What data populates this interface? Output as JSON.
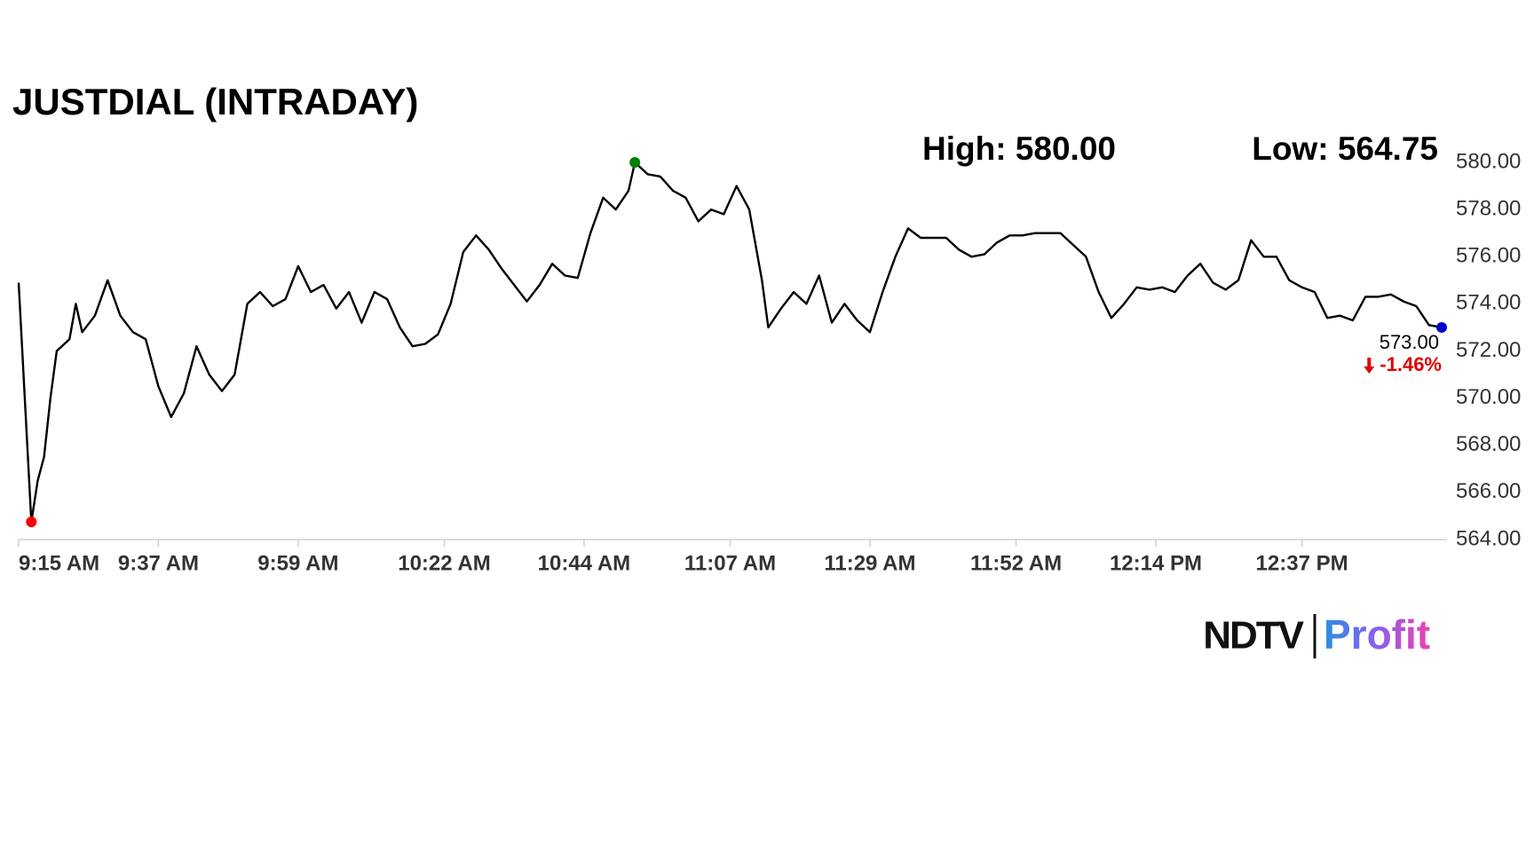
{
  "chart_data": {
    "type": "line",
    "title": "JUSTDIAL (INTRADAY)",
    "x": [
      "9:15 AM",
      "9:16 AM",
      "9:17 AM",
      "9:18 AM",
      "9:19 AM",
      "9:20 AM",
      "9:21 AM",
      "9:23 AM",
      "9:24 AM",
      "9:25 AM",
      "9:27 AM",
      "9:29 AM",
      "9:31 AM",
      "9:33 AM",
      "9:35 AM",
      "9:37 AM",
      "9:39 AM",
      "9:41 AM",
      "9:43 AM",
      "9:45 AM",
      "9:47 AM",
      "9:49 AM",
      "9:51 AM",
      "9:53 AM",
      "9:55 AM",
      "9:57 AM",
      "9:59 AM",
      "10:01 AM",
      "10:03 AM",
      "10:05 AM",
      "10:07 AM",
      "10:09 AM",
      "10:11 AM",
      "10:13 AM",
      "10:15 AM",
      "10:17 AM",
      "10:19 AM",
      "10:21 AM",
      "10:23 AM",
      "10:25 AM",
      "10:27 AM",
      "10:29 AM",
      "10:31 AM",
      "10:33 AM",
      "10:35 AM",
      "10:37 AM",
      "10:39 AM",
      "10:41 AM",
      "10:43 AM",
      "10:45 AM",
      "10:47 AM",
      "10:49 AM",
      "10:51 AM",
      "10:52 AM",
      "10:54 AM",
      "10:56 AM",
      "10:58 AM",
      "11:00 AM",
      "11:02 AM",
      "11:04 AM",
      "11:06 AM",
      "11:08 AM",
      "11:10 AM",
      "11:12 AM",
      "11:13 AM",
      "11:15 AM",
      "11:17 AM",
      "11:19 AM",
      "11:21 AM",
      "11:23 AM",
      "11:25 AM",
      "11:27 AM",
      "11:29 AM",
      "11:31 AM",
      "11:33 AM",
      "11:35 AM",
      "11:37 AM",
      "11:39 AM",
      "11:41 AM",
      "11:43 AM",
      "11:45 AM",
      "11:47 AM",
      "11:49 AM",
      "11:51 AM",
      "11:53 AM",
      "11:55 AM",
      "11:57 AM",
      "11:59 AM",
      "12:01 PM",
      "12:03 PM",
      "12:05 PM",
      "12:07 PM",
      "12:09 PM",
      "12:11 PM",
      "12:13 PM",
      "12:15 PM",
      "12:17 PM",
      "12:19 PM",
      "12:21 PM",
      "12:23 PM",
      "12:25 PM",
      "12:27 PM",
      "12:29 PM",
      "12:31 PM",
      "12:33 PM",
      "12:35 PM",
      "12:37 PM",
      "12:39 PM",
      "12:41 PM",
      "12:43 PM",
      "12:45 PM",
      "12:47 PM",
      "12:49 PM",
      "12:51 PM",
      "12:53 PM",
      "12:55 PM",
      "12:57 PM",
      "12:59 PM"
    ],
    "series": [
      {
        "color": "#000000",
        "values": [
          574.9,
          569.8,
          564.75,
          566.5,
          567.5,
          570,
          572,
          572.5,
          574,
          572.8,
          573.5,
          575,
          573.5,
          572.8,
          572.5,
          570.5,
          569.2,
          570.2,
          572.2,
          571,
          570.3,
          571,
          574,
          574.5,
          573.9,
          574.2,
          575.6,
          574.5,
          574.8,
          573.8,
          574.5,
          573.2,
          574.5,
          574.2,
          573,
          572.2,
          572.3,
          572.7,
          574,
          576.2,
          576.9,
          576.3,
          575.5,
          574.8,
          574.1,
          574.8,
          575.7,
          575.2,
          575.1,
          577,
          578.5,
          578,
          578.8,
          580,
          579.5,
          579.4,
          578.8,
          578.5,
          577.5,
          578,
          577.8,
          579,
          578,
          575,
          573,
          573.8,
          574.5,
          574,
          575.2,
          573.2,
          574,
          573.3,
          572.8,
          574.5,
          576,
          577.2,
          576.8,
          576.8,
          576.8,
          576.3,
          576,
          576.1,
          576.6,
          576.9,
          576.9,
          577,
          577,
          577,
          576.5,
          576,
          574.5,
          573.4,
          574,
          574.7,
          574.6,
          574.7,
          574.5,
          575.2,
          575.7,
          574.9,
          574.6,
          575,
          576.7,
          576,
          576,
          575,
          574.7,
          574.5,
          573.4,
          573.5,
          573.3,
          574.3,
          574.3,
          574.4,
          574.1,
          573.9,
          573.1,
          573
        ]
      }
    ],
    "xlim": [
      "9:15 AM",
      "12:59 PM"
    ],
    "xticks": [
      "9:15 AM",
      "9:37 AM",
      "9:59 AM",
      "10:22 AM",
      "10:44 AM",
      "11:07 AM",
      "11:29 AM",
      "11:52 AM",
      "12:14 PM",
      "12:37 PM"
    ],
    "ylim": [
      564,
      580
    ],
    "yticks": [
      {
        "value": 564,
        "label": "564.00"
      },
      {
        "value": 566,
        "label": "566.00"
      },
      {
        "value": 568,
        "label": "568.00"
      },
      {
        "value": 570,
        "label": "570.00"
      },
      {
        "value": 572,
        "label": "572.00"
      },
      {
        "value": 574,
        "label": "574.00"
      },
      {
        "value": 576,
        "label": "576.00"
      },
      {
        "value": 578,
        "label": "578.00"
      },
      {
        "value": 580,
        "label": "580.00"
      }
    ],
    "grid": false,
    "high": {
      "value": 580,
      "label": "High: 580.00",
      "x": "10:52 AM",
      "color": "#008000"
    },
    "low": {
      "value": 564.75,
      "label": "Low: 564.75",
      "x": "9:17 AM",
      "color": "#ff0000"
    },
    "last": {
      "value": 573,
      "label": "573.00",
      "x": "12:59 PM",
      "color": "#0000cc"
    },
    "change": {
      "value": -1.46,
      "label": "-1.46%",
      "color": "#e00000"
    },
    "logo": {
      "left": "NDTV",
      "right": "Profit"
    }
  }
}
